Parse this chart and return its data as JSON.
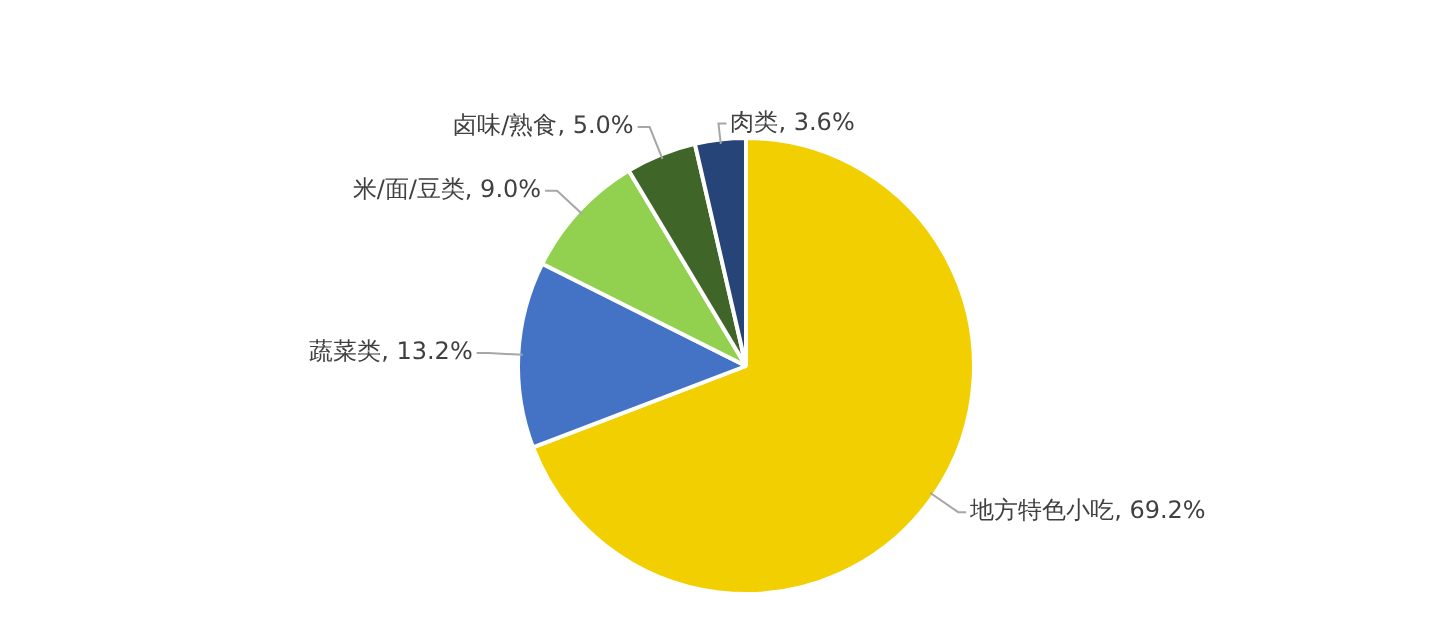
{
  "chart_data": {
    "type": "pie",
    "categories": [
      "地方特色小吃",
      "蔬菜类",
      "米/面/豆类",
      "卤味/熟食",
      "肉类"
    ],
    "values": [
      69.2,
      13.2,
      9.0,
      5.0,
      3.6
    ],
    "value_labels": [
      "69.2%",
      "13.2%",
      "9.0%",
      "5.0%",
      "3.6%"
    ],
    "colors": [
      "#f2cf00",
      "#4472c4",
      "#92d050",
      "#3f6628",
      "#264478"
    ],
    "legend": false
  }
}
